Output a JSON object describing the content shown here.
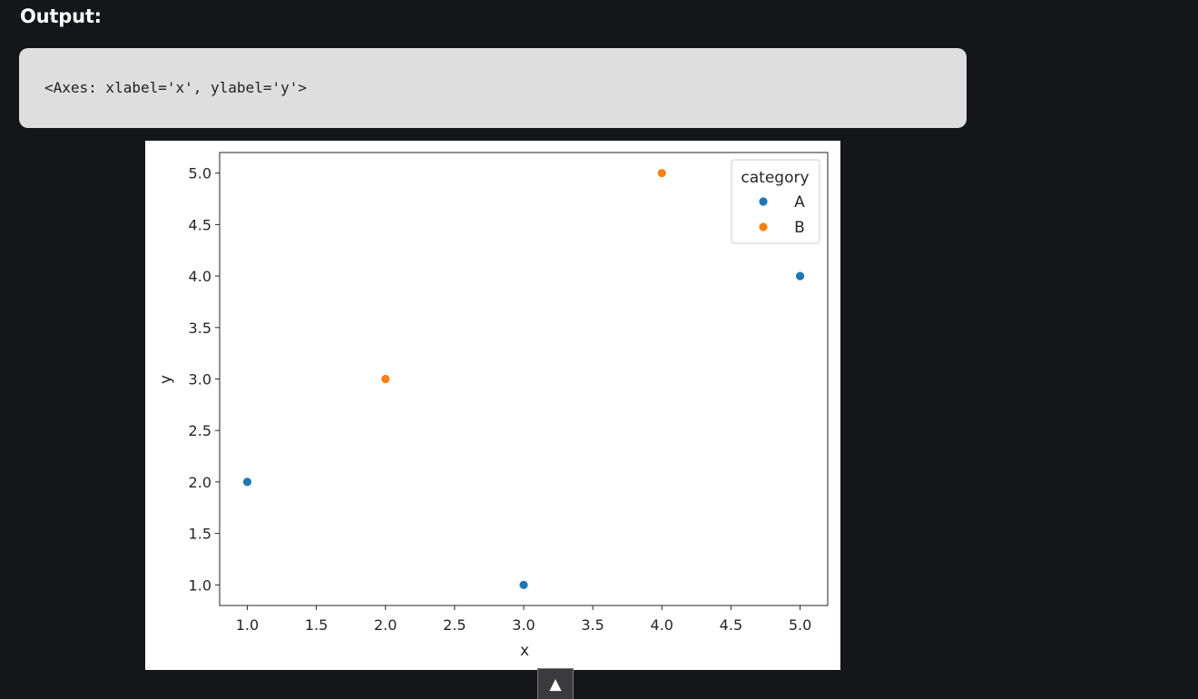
{
  "heading": "Output:",
  "code_output": "<Axes: xlabel='x', ylabel='y'>",
  "collapse_button": {
    "icon": "triangle-up-icon",
    "glyph": "▲"
  },
  "colors": {
    "A": "#1f77b4",
    "B": "#ff7f0e"
  },
  "chart_data": {
    "type": "scatter",
    "xlabel": "x",
    "ylabel": "y",
    "xlim": [
      0.8,
      5.2
    ],
    "ylim": [
      0.8,
      5.2
    ],
    "xticks": [
      "1.0",
      "1.5",
      "2.0",
      "2.5",
      "3.0",
      "3.5",
      "4.0",
      "4.5",
      "5.0"
    ],
    "yticks": [
      "1.0",
      "1.5",
      "2.0",
      "2.5",
      "3.0",
      "3.5",
      "4.0",
      "4.5",
      "5.0"
    ],
    "grid": false,
    "legend": {
      "title": "category",
      "placement": "top-right",
      "entries": [
        {
          "label": "A",
          "color": "#1f77b4"
        },
        {
          "label": "B",
          "color": "#ff7f0e"
        }
      ]
    },
    "series": [
      {
        "name": "A",
        "color": "#1f77b4",
        "points": [
          {
            "x": 1,
            "y": 2
          },
          {
            "x": 3,
            "y": 1
          },
          {
            "x": 5,
            "y": 4
          }
        ]
      },
      {
        "name": "B",
        "color": "#ff7f0e",
        "points": [
          {
            "x": 2,
            "y": 3
          },
          {
            "x": 4,
            "y": 5
          }
        ]
      }
    ]
  }
}
